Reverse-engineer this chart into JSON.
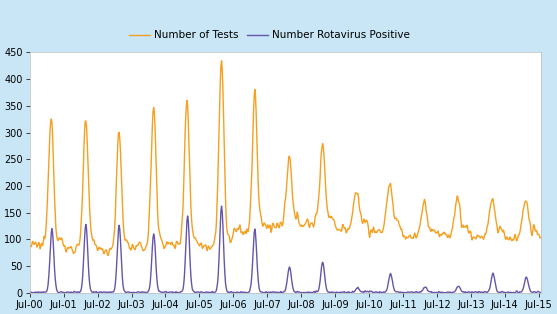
{
  "legend_labels": [
    "Number Rotavirus Positive",
    "Number of Tests"
  ],
  "purple_color": "#6655A8",
  "orange_color": "#F5A020",
  "background_color": "#C8E6F5",
  "plot_bg_color": "#FFFFFF",
  "ylim": [
    0,
    450
  ],
  "yticks": [
    0,
    50,
    100,
    150,
    200,
    250,
    300,
    350,
    400,
    450
  ],
  "xtick_labels": [
    "Jul-00",
    "Jul-01",
    "Jul-02",
    "Jul-03",
    "Jul-04",
    "Jul-05",
    "Jul-06",
    "Jul-07",
    "Jul-08",
    "Jul-09",
    "Jul-10",
    "Jul-11",
    "Jul-12",
    "Jul-13",
    "Jul-14",
    "Jul-15"
  ],
  "total_weeks": 784,
  "linewidth": 1.0,
  "legend_fontsize": 7.5,
  "tick_fontsize": 7.0,
  "figsize": [
    5.57,
    3.14
  ],
  "dpi": 100
}
